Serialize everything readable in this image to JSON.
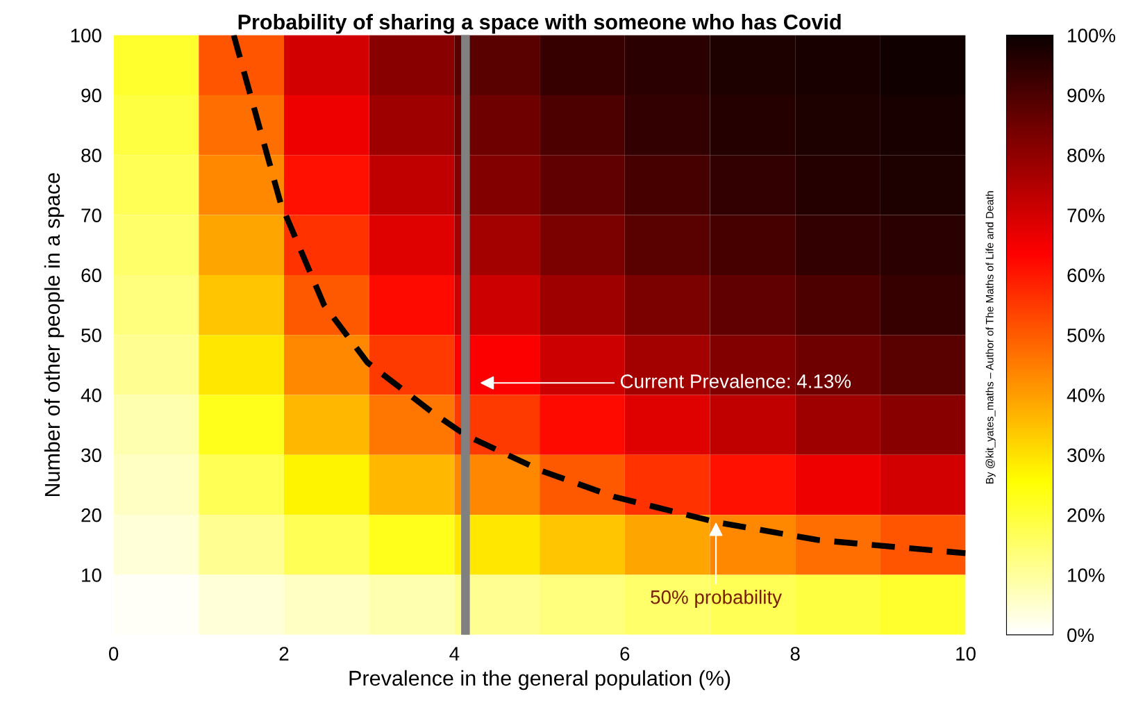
{
  "chart_data": {
    "type": "heatmap",
    "title": "Probability of sharing a space with someone who has Covid",
    "xlabel": "Prevalence in the general population (%)",
    "ylabel": "Number of other people in a space",
    "cells": [
      [
        21,
        51,
        70,
        81,
        88,
        93,
        95,
        97,
        98,
        99
      ],
      [
        19,
        47,
        66,
        78,
        85,
        90,
        94,
        96,
        97,
        98
      ],
      [
        17,
        43,
        61,
        73,
        82,
        87,
        91,
        94,
        96,
        97
      ],
      [
        15,
        39,
        56,
        68,
        77,
        83,
        88,
        91,
        94,
        95
      ],
      [
        13,
        34,
        50,
        62,
        71,
        78,
        83,
        87,
        90,
        93
      ],
      [
        11,
        29,
        43,
        55,
        64,
        71,
        77,
        82,
        85,
        88
      ],
      [
        8,
        23,
        36,
        46,
        55,
        62,
        68,
        73,
        78,
        81
      ],
      [
        6,
        17,
        27,
        36,
        43,
        50,
        56,
        61,
        66,
        70
      ],
      [
        4,
        11,
        17,
        23,
        29,
        34,
        39,
        43,
        47,
        51
      ],
      [
        1,
        4,
        6,
        8,
        11,
        13,
        15,
        17,
        19,
        21
      ]
    ],
    "xlim": [
      0,
      10
    ],
    "xticks": [
      0,
      2,
      4,
      6,
      8,
      10
    ],
    "ylim": [
      0,
      100
    ],
    "yticks": [
      10,
      20,
      30,
      40,
      50,
      60,
      70,
      80,
      90,
      100
    ],
    "clim": [
      0,
      100
    ],
    "cticks": [
      {
        "value": 0,
        "label": "0%"
      },
      {
        "value": 10,
        "label": "10%"
      },
      {
        "value": 20,
        "label": "20%"
      },
      {
        "value": 30,
        "label": "30%"
      },
      {
        "value": 40,
        "label": "40%"
      },
      {
        "value": 50,
        "label": "50%"
      },
      {
        "value": 60,
        "label": "60%"
      },
      {
        "value": 70,
        "label": "70%"
      },
      {
        "value": 80,
        "label": "80%"
      },
      {
        "value": 90,
        "label": "90%"
      },
      {
        "value": 100,
        "label": "100%"
      }
    ],
    "series": [
      {
        "type": "line",
        "color": "#000000",
        "line_style": "dashed",
        "x": [
          1.41,
          1.96,
          2.47,
          2.98,
          3.75,
          4.13,
          5.03,
          5.88,
          7.07,
          8.27,
          10
        ],
        "values": [
          100,
          72,
          55,
          45.4,
          37,
          33.3,
          27.3,
          23,
          18.8,
          15.8,
          13.6
        ]
      }
    ],
    "ref_lines": [
      {
        "axis": "x",
        "value": 4.13,
        "color": "#808080"
      }
    ],
    "annotations": [
      "Current Prevalence: 4.13%",
      {
        "text": "50% probability",
        "x": 7.07,
        "y": 18.8
      },
      "By @kit_yates_maths – Author of The Maths of Life and Death"
    ]
  }
}
